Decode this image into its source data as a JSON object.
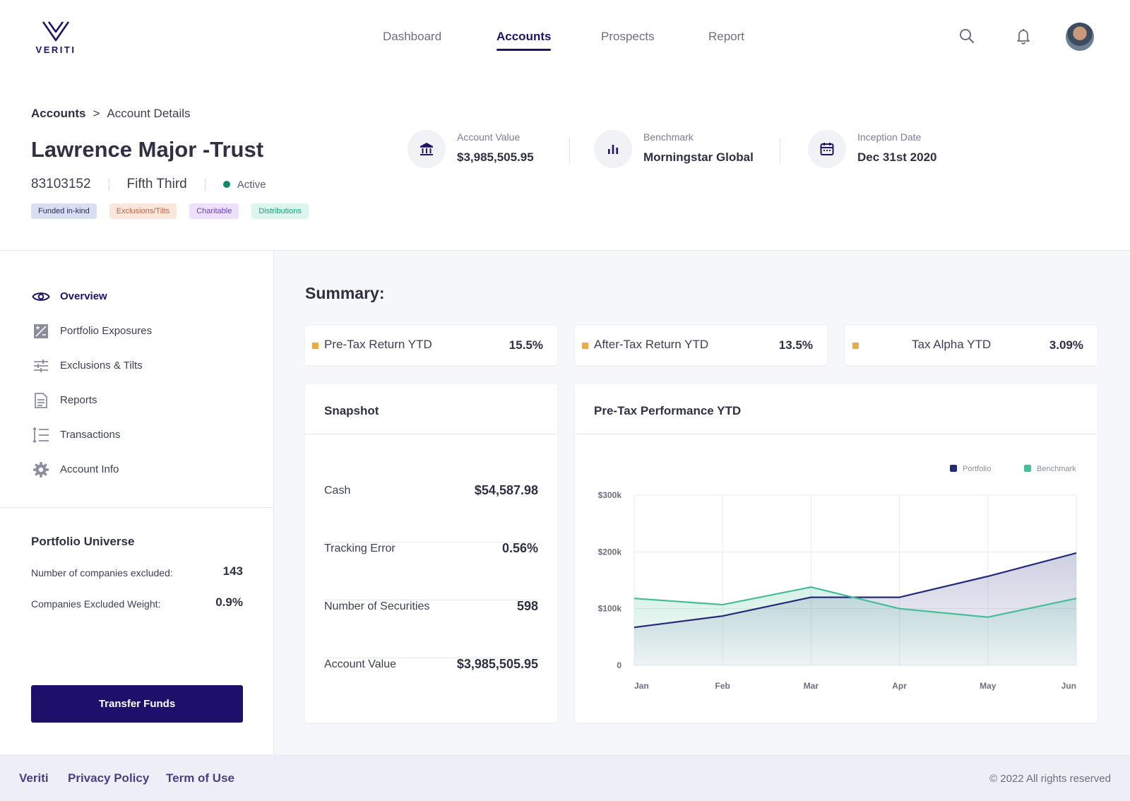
{
  "brand": {
    "name": "VERITI"
  },
  "nav": {
    "items": [
      {
        "label": "Dashboard"
      },
      {
        "label": "Accounts",
        "active": true
      },
      {
        "label": "Prospects"
      },
      {
        "label": "Report"
      }
    ]
  },
  "breadcrumb": {
    "root": "Accounts",
    "separator": ">",
    "current": "Account Details"
  },
  "account": {
    "name": "Lawrence Major -Trust",
    "number": "83103152",
    "custodian": "Fifth Third",
    "status": "Active",
    "status_color": "#118a6a",
    "tags": [
      "Funded in-kind",
      "Exclusions/Tilts",
      "Charitable",
      "Distributions"
    ]
  },
  "kpis": [
    {
      "icon": "bank-icon",
      "label": "Account Value",
      "value": "$3,985,505.95"
    },
    {
      "icon": "bar-chart-icon",
      "label": "Benchmark",
      "value": "Morningstar Global"
    },
    {
      "icon": "calendar-icon",
      "label": "Inception Date",
      "value": "Dec 31st 2020"
    }
  ],
  "sidebar": {
    "items": [
      {
        "label": "Overview",
        "icon": "eye-icon",
        "active": true
      },
      {
        "label": "Portfolio Exposures",
        "icon": "exposure-icon"
      },
      {
        "label": "Exclusions & Tilts",
        "icon": "sliders-icon"
      },
      {
        "label": "Reports",
        "icon": "document-icon"
      },
      {
        "label": "Transactions",
        "icon": "list-icon"
      },
      {
        "label": "Account Info",
        "icon": "gear-icon"
      }
    ],
    "universe": {
      "title": "Portfolio Universe",
      "excluded_label": "Number of companies excluded:",
      "excluded_value": "143",
      "weight_label": "Companies Excluded Weight:",
      "weight_value": "0.9%"
    },
    "transfer_button": "Transfer Funds"
  },
  "summary": {
    "title": "Summary:",
    "metrics": [
      {
        "label": "Pre-Tax Return YTD",
        "value": "15.5%"
      },
      {
        "label": "After-Tax Return YTD",
        "value": "13.5%"
      },
      {
        "label": "Tax Alpha YTD",
        "value": "3.09%"
      }
    ],
    "marker_color": "#e6ad4e"
  },
  "snapshot": {
    "title": "Snapshot",
    "rows": [
      {
        "label": "Cash",
        "value": "$54,587.98"
      },
      {
        "label": "Tracking Error",
        "value": "0.56%"
      },
      {
        "label": "Number of Securities",
        "value": "598"
      },
      {
        "label": "Account Value",
        "value": "$3,985,505.95"
      }
    ]
  },
  "performance": {
    "title": "Pre-Tax Performance YTD"
  },
  "chart_data": {
    "type": "area",
    "title": "Pre-Tax Performance YTD",
    "categories": [
      "Jan",
      "Feb",
      "Mar",
      "Apr",
      "May",
      "Jun"
    ],
    "series": [
      {
        "name": "Portfolio",
        "color": "#252a78",
        "values": [
          67000,
          87000,
          120000,
          120000,
          157000,
          198000
        ]
      },
      {
        "name": "Benchmark",
        "color": "#45bd96",
        "values": [
          118000,
          107000,
          138000,
          100000,
          85000,
          118000
        ]
      }
    ],
    "y_ticks": [
      "0",
      "$100k",
      "$200k",
      "$300k"
    ],
    "ylim": [
      0,
      300000
    ],
    "legend_position": "top-right",
    "grid": true
  },
  "footer": {
    "links": [
      "Veriti",
      "Privacy Policy",
      "Term of Use"
    ],
    "copyright": "© 2022 All rights reserved"
  }
}
